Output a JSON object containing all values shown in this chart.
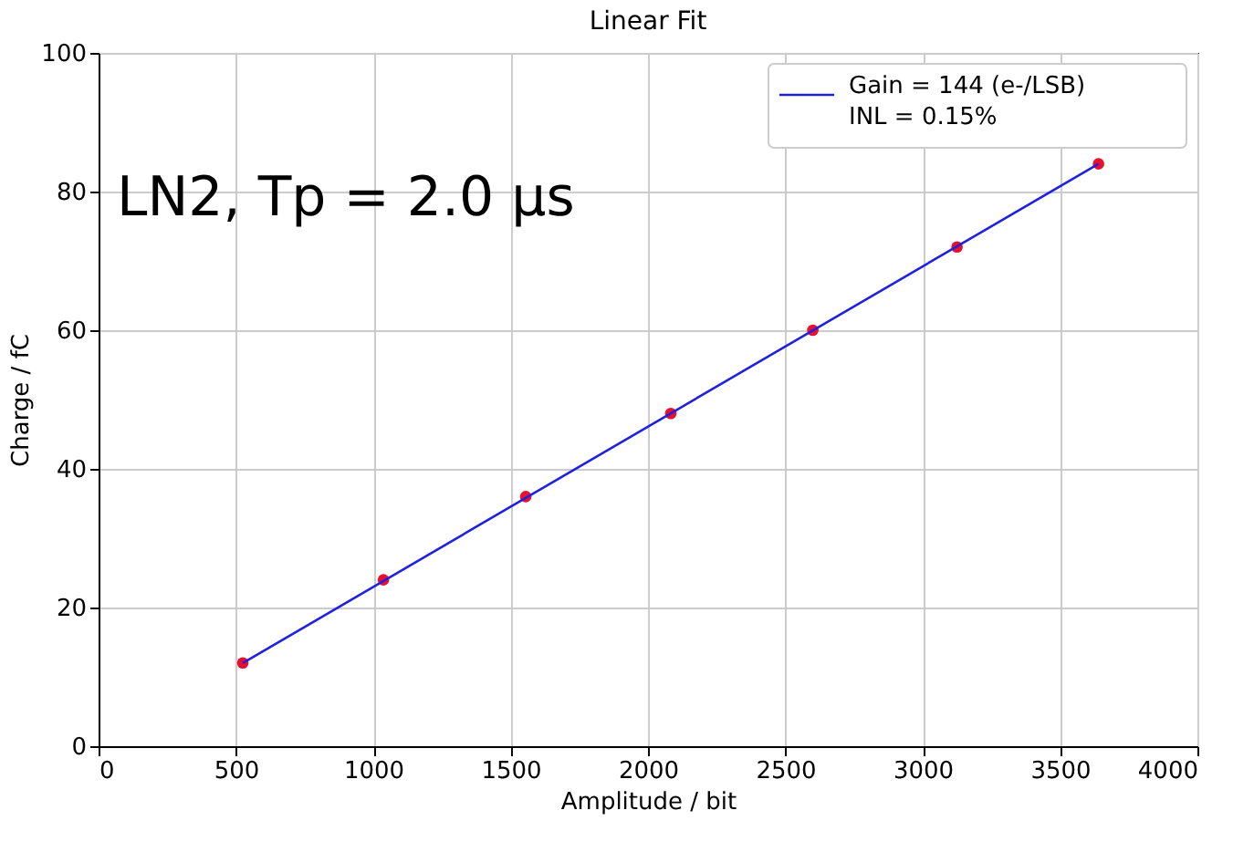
{
  "chart_data": {
    "type": "scatter",
    "title": "Linear Fit",
    "xlabel": "Amplitude / bit",
    "ylabel": "Charge / fC",
    "x": [
      525,
      1037,
      1555,
      2083,
      2600,
      3125,
      3640
    ],
    "series": [
      {
        "color": "#e8102e",
        "values": [
          12,
          24,
          36,
          48,
          60,
          72,
          84
        ],
        "marker": "circle"
      },
      {
        "type": "line",
        "name": "Gain = 144 (e-/LSB)\n INL = 0.15%",
        "color": "#2020e0",
        "x": [
          525,
          3640
        ],
        "values": [
          12,
          84
        ],
        "line_style": "solid"
      }
    ],
    "xlim": [
      0,
      4000
    ],
    "xticks": [
      0,
      500,
      1000,
      1500,
      2000,
      2500,
      3000,
      3500,
      4000
    ],
    "ylim": [
      0,
      100
    ],
    "yticks": [
      0,
      20,
      40,
      60,
      80,
      100
    ],
    "grid": true,
    "legend": "top right",
    "annotations": [
      {
        "text": "LN2, Tp = 2.0 μs"
      }
    ]
  }
}
